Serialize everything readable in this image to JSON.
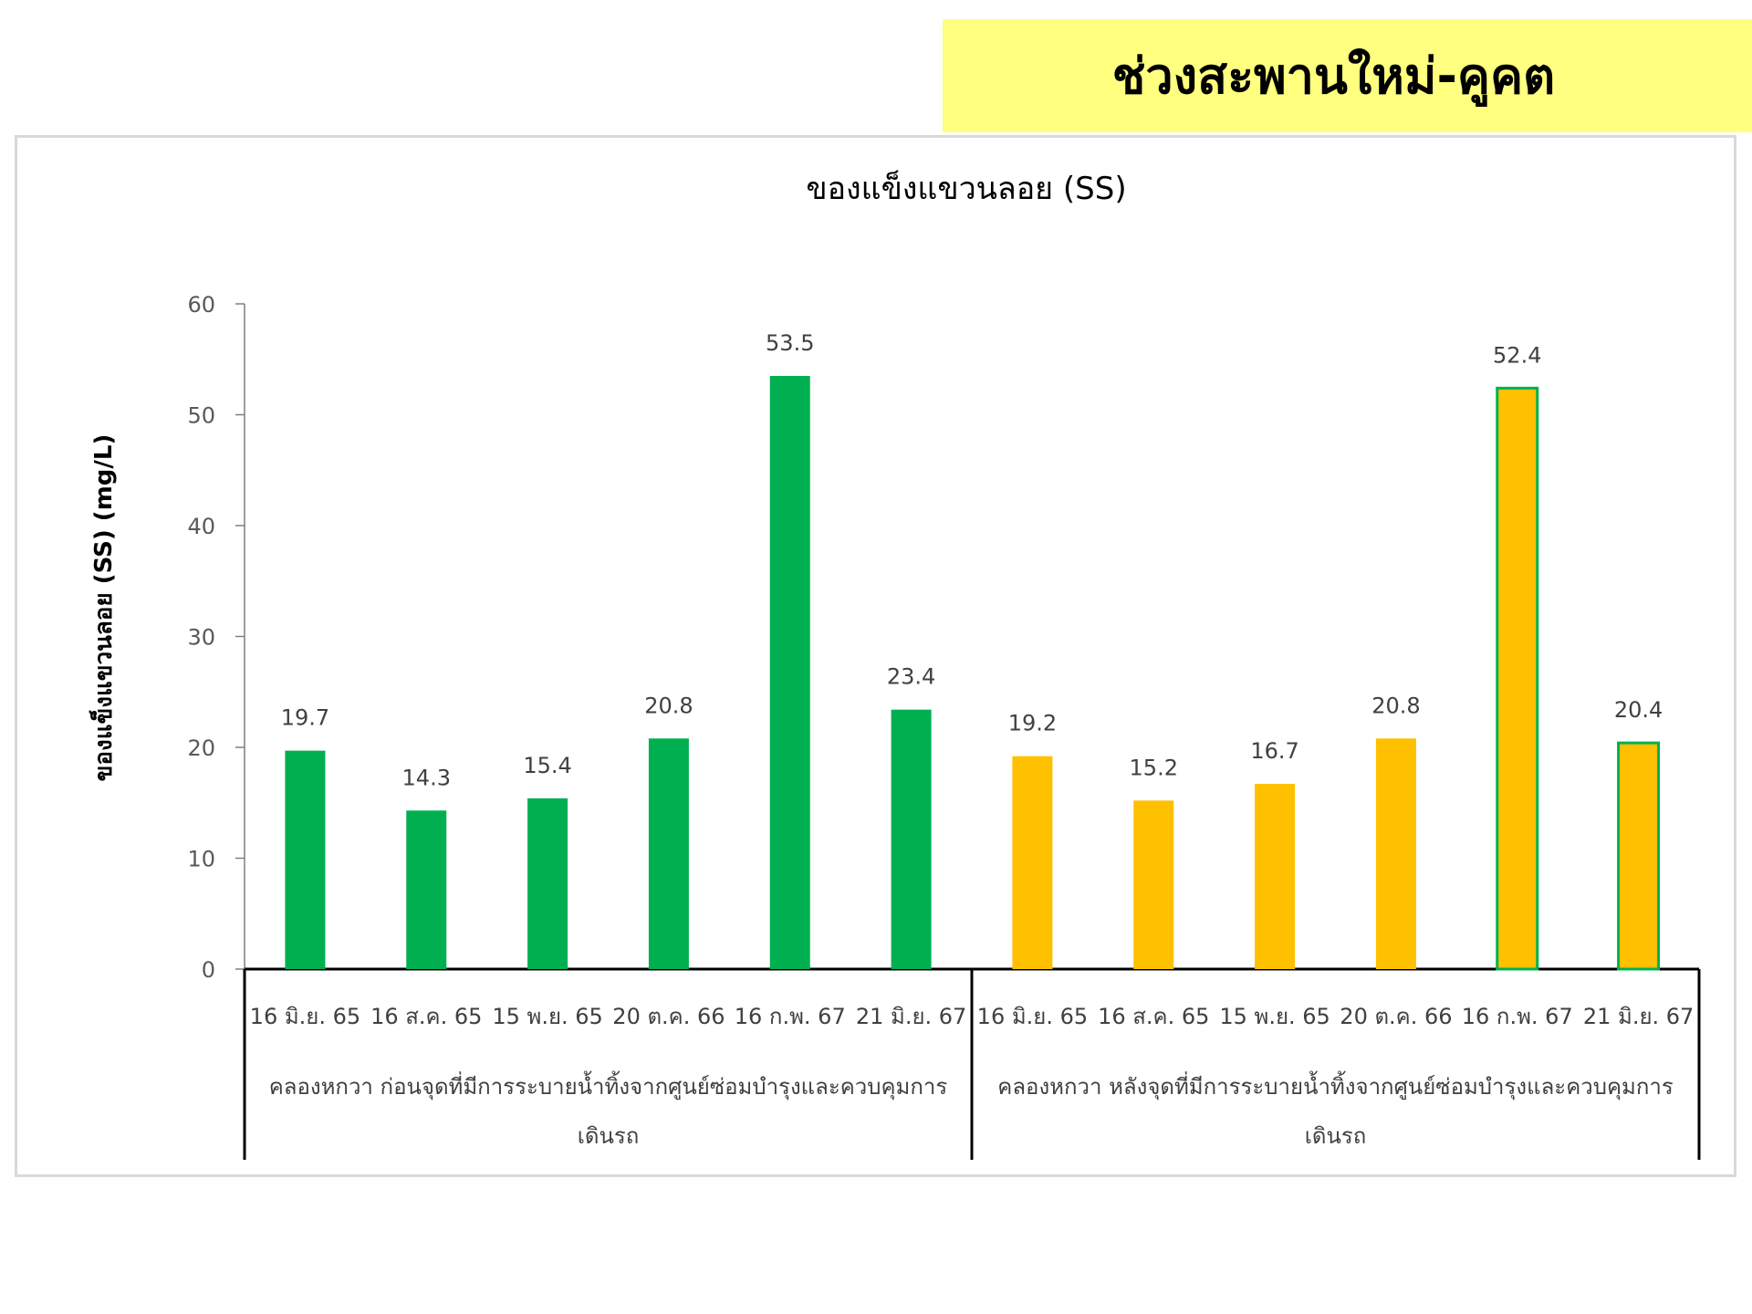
{
  "banner": {
    "title": "ช่วงสะพานใหม่-คูคต"
  },
  "colors": {
    "group1": "#00b050",
    "group2": "#ffc000",
    "banner": "#ffff80",
    "highlight_border": "#00b050"
  },
  "chart_data": {
    "type": "bar",
    "title": "ของแข็งแขวนลอย (SS)",
    "xlabel": "",
    "ylabel": "ของแข็งแขวนลอย (SS) (mg/L)",
    "ylim": [
      0,
      60
    ],
    "yticks": [
      0,
      10,
      20,
      30,
      40,
      50,
      60
    ],
    "grid": false,
    "legend": "none",
    "groups": [
      {
        "label": "คลองหกวา ก่อนจุดที่มีการระบายน้ำทิ้งจากศูนย์ซ่อมบำรุงและควบคุมการเดินรถ",
        "label_lines": [
          "คลองหกวา ก่อนจุดที่มีการระบายน้ำทิ้งจากศูนย์ซ่อมบำรุงและควบคุมการ",
          "เดินรถ"
        ],
        "color": "#00b050",
        "categories": [
          "16 มิ.ย. 65",
          "16 ส.ค. 65",
          "15 พ.ย. 65",
          "20 ต.ค. 66",
          "16 ก.พ. 67",
          "21 มิ.ย. 67"
        ],
        "values": [
          19.7,
          14.3,
          15.4,
          20.8,
          53.5,
          23.4
        ],
        "value_labels": [
          "19.7",
          "14.3",
          "15.4",
          "20.8",
          "53.5",
          "23.4"
        ]
      },
      {
        "label": "คลองหกวา หลังจุดที่มีการระบายน้ำทิ้งจากศูนย์ซ่อมบำรุงและควบคุมการเดินรถ",
        "label_lines": [
          "คลองหกวา หลังจุดที่มีการระบายน้ำทิ้งจากศูนย์ซ่อมบำรุงและควบคุมการ",
          "เดินรถ"
        ],
        "color": "#ffc000",
        "categories": [
          "16 มิ.ย. 65",
          "16 ส.ค. 65",
          "15 พ.ย. 65",
          "20 ต.ค. 66",
          "16 ก.พ. 67",
          "21 มิ.ย. 67"
        ],
        "values": [
          19.2,
          15.2,
          16.7,
          20.8,
          52.4,
          20.4
        ],
        "value_labels": [
          "19.2",
          "15.2",
          "16.7",
          "20.8",
          "52.4",
          "20.4"
        ],
        "outlined": [
          false,
          false,
          false,
          false,
          true,
          true
        ]
      }
    ]
  }
}
